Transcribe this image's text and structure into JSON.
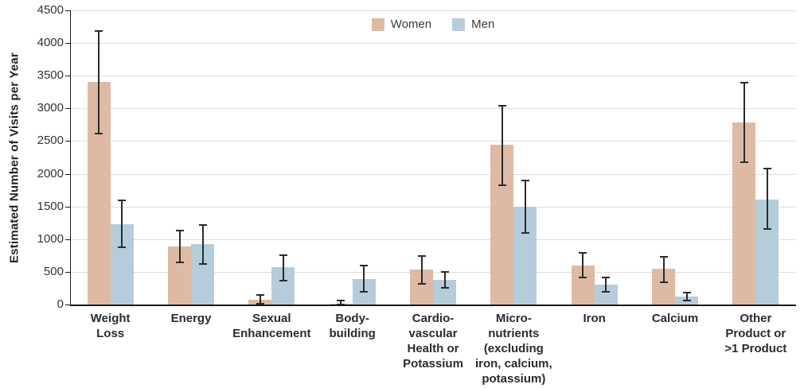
{
  "figure": {
    "ylabel": "Estimated Number of Visits per Year"
  },
  "chart_data": {
    "type": "bar",
    "title": "",
    "xlabel": "",
    "ylabel": "Estimated Number of Visits per Year",
    "ylim": [
      0,
      4500
    ],
    "ytick_step": 500,
    "grid": true,
    "legend_position": "top-center",
    "error_bars": true,
    "colors": {
      "women_bar": "#debaa4",
      "men_bar": "#b5ccda",
      "error_bar": "#2b2b2b",
      "gridline": "#dcdcdc",
      "axis": "#1a1a1a"
    },
    "categories": [
      [
        "Weight",
        "Loss"
      ],
      [
        "Energy"
      ],
      [
        "Sexual",
        "Enhancement"
      ],
      [
        "Body-",
        "building"
      ],
      [
        "Cardio-",
        "vascular",
        "Health or",
        "Potassium"
      ],
      [
        "Micro-",
        "nutrients",
        "(excluding",
        "iron, calcium,",
        "potassium)"
      ],
      [
        "Iron"
      ],
      [
        "Calcium"
      ],
      [
        "Other",
        "Product or",
        ">1 Product"
      ]
    ],
    "series": [
      {
        "name": "Women",
        "color": "#debaa4",
        "values": [
          3400,
          890,
          70,
          15,
          540,
          2450,
          600,
          550,
          2790
        ],
        "err_low": [
          2620,
          650,
          10,
          0,
          320,
          1820,
          410,
          340,
          2180
        ],
        "err_high": [
          4180,
          1130,
          150,
          55,
          740,
          3040,
          790,
          730,
          3390
        ]
      },
      {
        "name": "Men",
        "color": "#b5ccda",
        "values": [
          1230,
          920,
          570,
          390,
          380,
          1500,
          300,
          120,
          1610
        ],
        "err_low": [
          870,
          620,
          370,
          190,
          250,
          1100,
          190,
          60,
          1150
        ],
        "err_high": [
          1590,
          1220,
          760,
          590,
          500,
          1900,
          410,
          180,
          2080
        ]
      }
    ]
  }
}
